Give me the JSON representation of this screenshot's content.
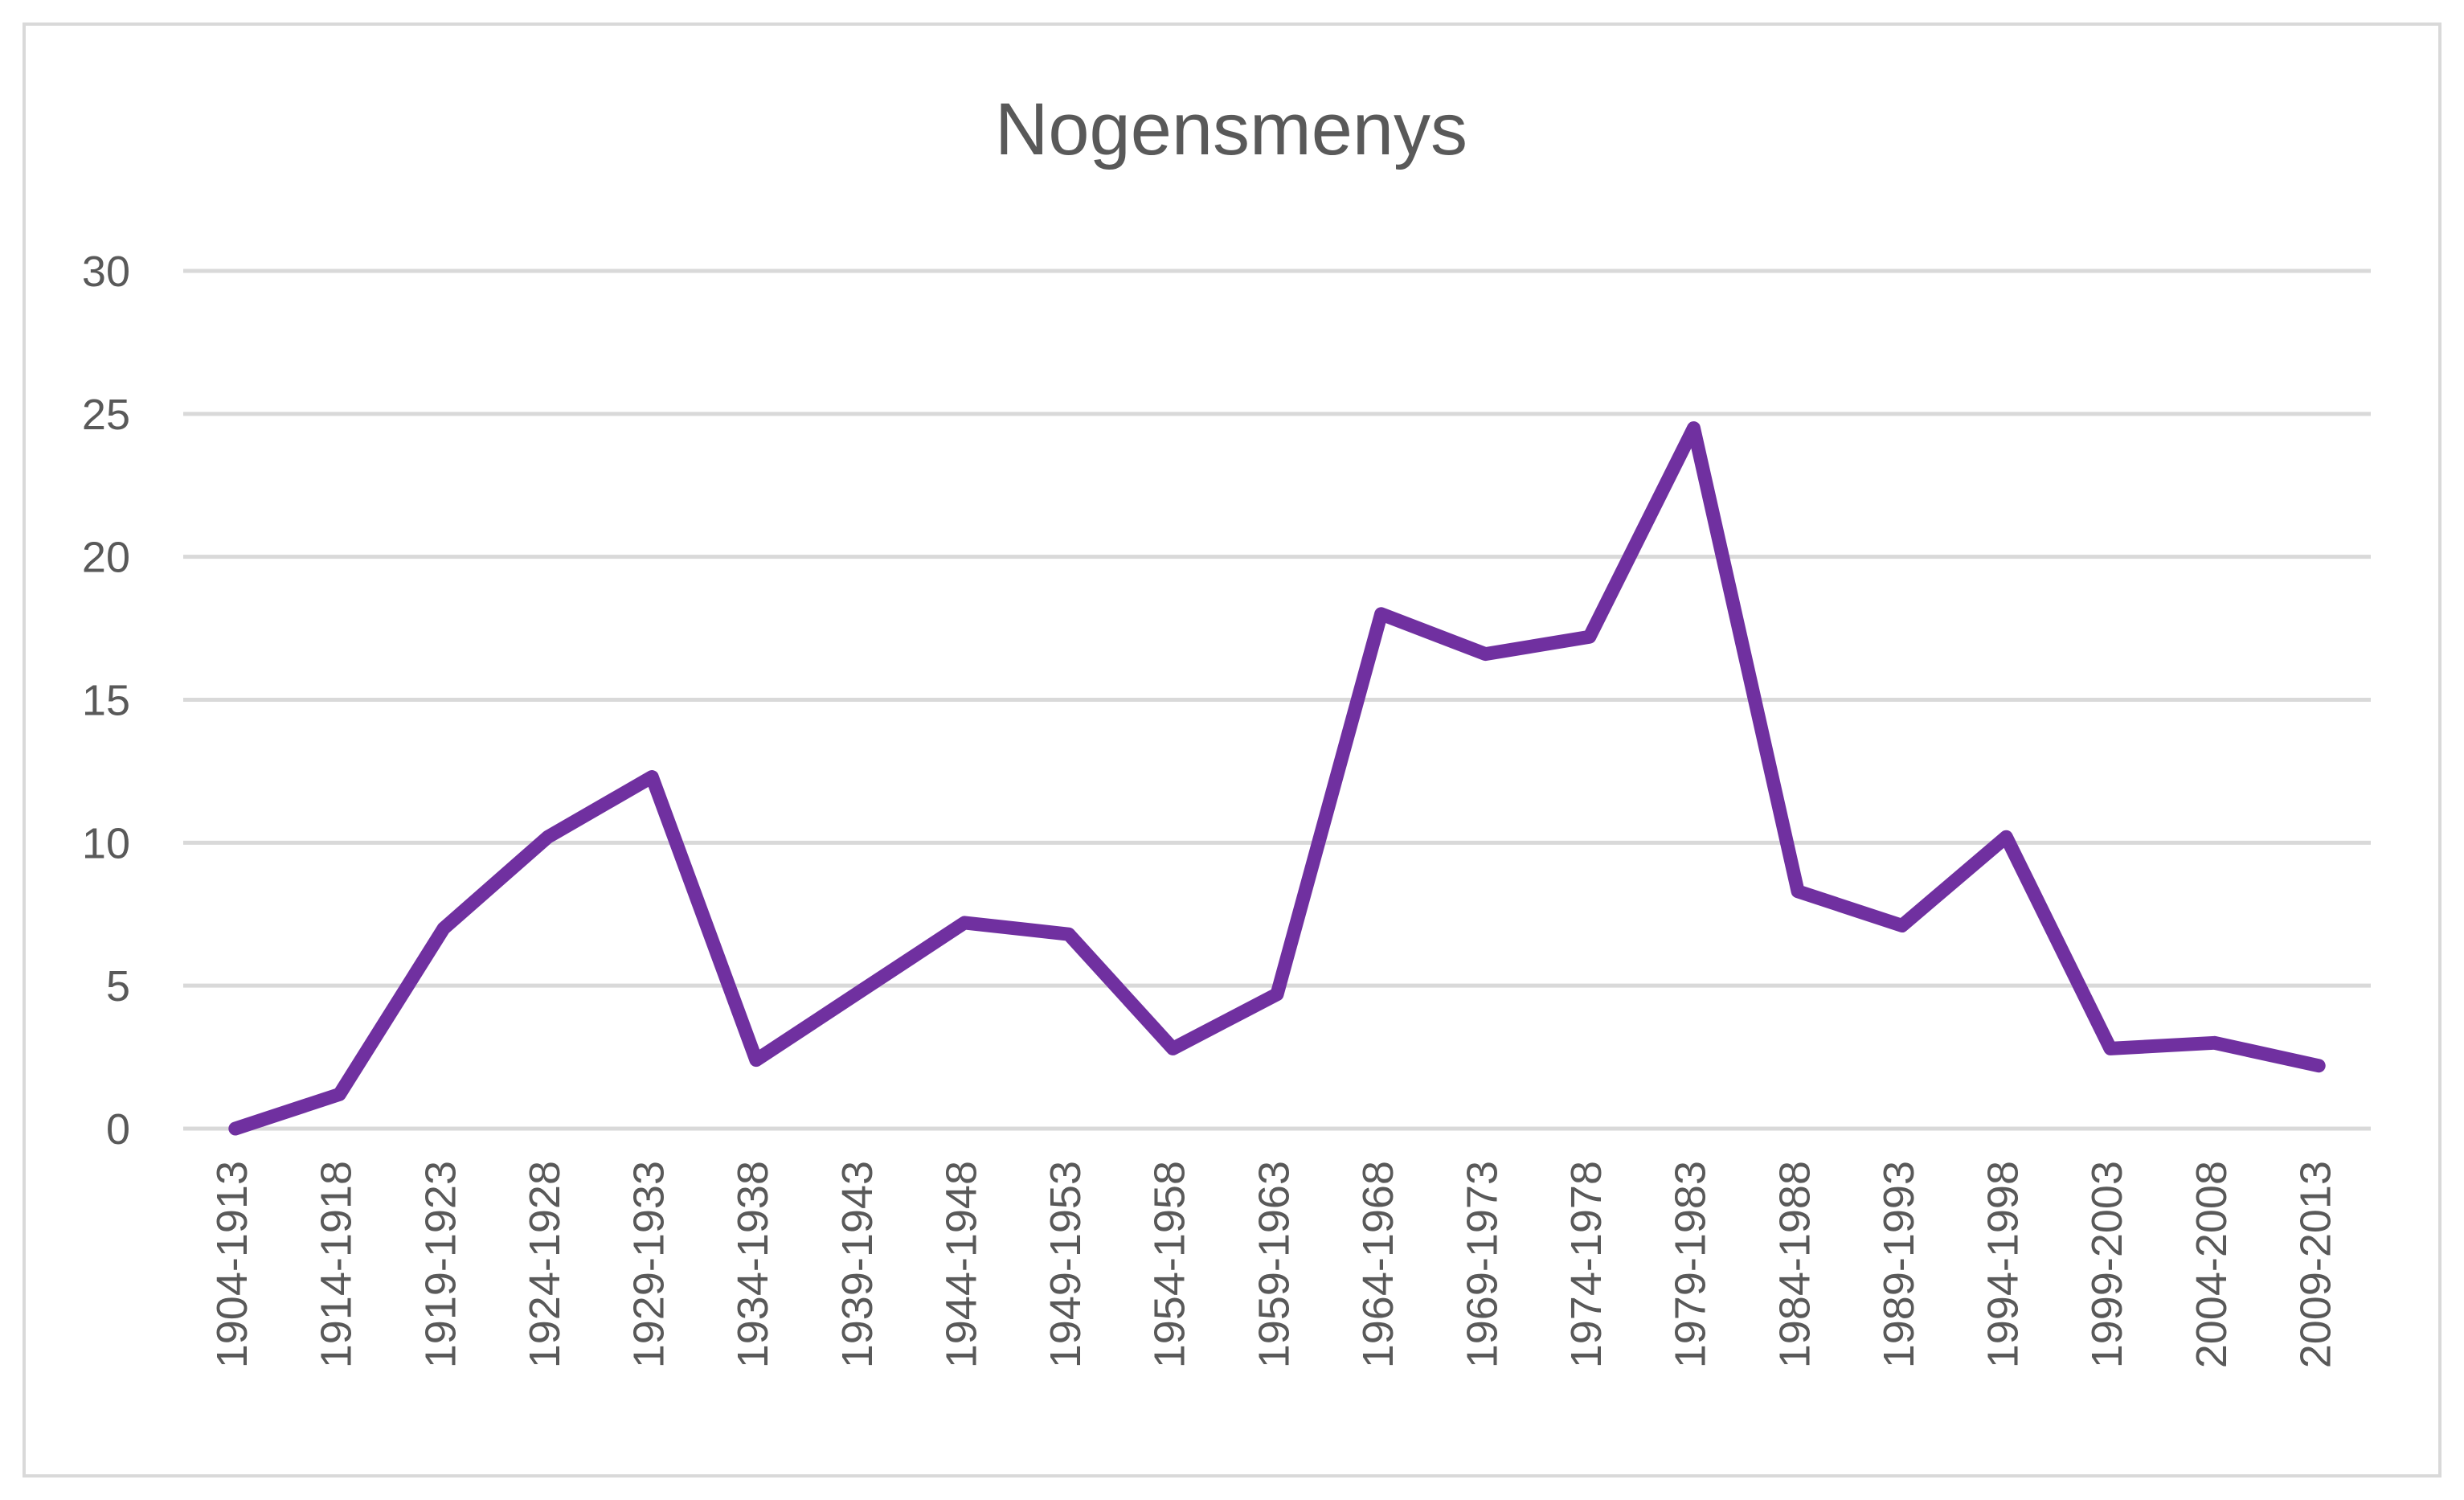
{
  "chart_data": {
    "type": "line",
    "title": "Nogensmenys",
    "xlabel": "",
    "ylabel": "",
    "categories": [
      "1904-1913",
      "1914-1918",
      "1919-1923",
      "1924-1928",
      "1929-1933",
      "1934-1938",
      "1939-1943",
      "1944-1948",
      "1949-1953",
      "1954-1958",
      "1959-1963",
      "1964-1968",
      "1969-1973",
      "1974-1978",
      "1979-1983",
      "1984-1988",
      "1989-1993",
      "1994-1998",
      "1999-2003",
      "2004-2008",
      "2009-2013"
    ],
    "series": [
      {
        "values": [
          0,
          1.2,
          7,
          10.2,
          12.3,
          2.4,
          4.8,
          7.2,
          6.8,
          2.8,
          4.7,
          18.0,
          16.6,
          17.2,
          24.5,
          8.3,
          7.1,
          10.2,
          2.8,
          3.0,
          2.2
        ],
        "color": "#7030a0"
      }
    ],
    "ylim": [
      0,
      30
    ],
    "yticks": [
      0,
      5,
      10,
      15,
      20,
      25,
      30
    ],
    "grid": true,
    "legend": "none",
    "colors": {
      "line": "#7030a0",
      "grid": "#d9d9d9",
      "text": "#595959",
      "border": "#d9d9d9"
    }
  }
}
